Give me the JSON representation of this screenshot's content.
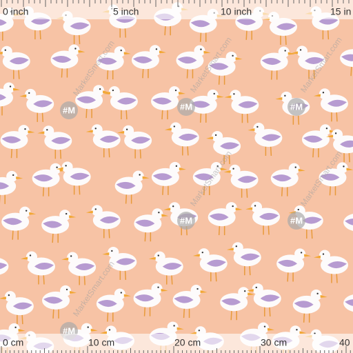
{
  "ruler_top": {
    "labels": [
      "0 inch",
      "5 inch",
      "10 inch",
      "15 in"
    ]
  },
  "ruler_bottom": {
    "labels": [
      "0 cm",
      "10 cm",
      "20 cm",
      "30 cm",
      "40"
    ]
  },
  "watermark": {
    "logo": "#M",
    "text": "MarketSmart.com"
  }
}
